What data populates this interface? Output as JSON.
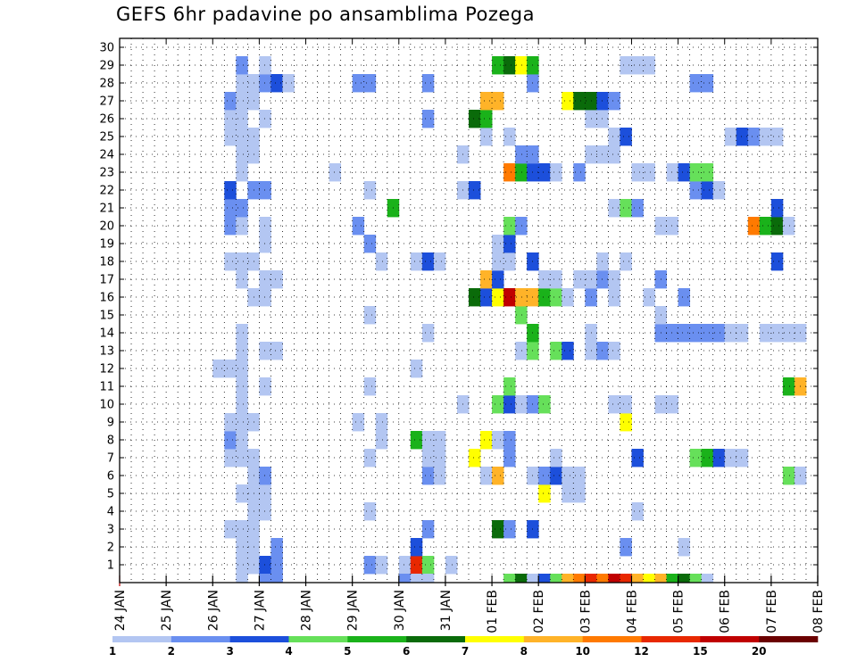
{
  "chart_data": {
    "type": "heatmap",
    "title": "GEFS 6hr padavine po ansamblima Pozega",
    "x_tick_labels": [
      "24 JAN",
      "25 JAN",
      "26 JAN",
      "27 JAN",
      "28 JAN",
      "29 JAN",
      "30 JAN",
      "31 JAN",
      "01 FEB",
      "02 FEB",
      "03 FEB",
      "04 FEB",
      "05 FEB",
      "06 FEB",
      "07 FEB",
      "08 FEB"
    ],
    "y_tick_labels": [
      "1",
      "2",
      "3",
      "4",
      "5",
      "6",
      "7",
      "8",
      "9",
      "10",
      "11",
      "12",
      "13",
      "14",
      "15",
      "16",
      "17",
      "18",
      "19",
      "20",
      "21",
      "22",
      "23",
      "24",
      "25",
      "26",
      "27",
      "28",
      "29",
      "30"
    ],
    "time_step_hours": 6,
    "members": 30,
    "grid": true,
    "legend": {
      "placement": "bottom",
      "levels": [
        "1",
        "2",
        "3",
        "4",
        "5",
        "6",
        "7",
        "8",
        "10",
        "12",
        "15",
        "20"
      ],
      "colors": [
        "#b3c6f2",
        "#6a8ff0",
        "#1c4fdb",
        "#66e05a",
        "#1ab21a",
        "#0a6b0a",
        "#ffff00",
        "#ffb328",
        "#ff7a00",
        "#e82800",
        "#c00000",
        "#6b0000"
      ]
    },
    "cells": [
      [
        1,
        10,
        1
      ],
      [
        1,
        11,
        1
      ],
      [
        1,
        12,
        3
      ],
      [
        1,
        13,
        2
      ],
      [
        1,
        21,
        2
      ],
      [
        1,
        22,
        1
      ],
      [
        1,
        24,
        1
      ],
      [
        1,
        25,
        10
      ],
      [
        1,
        26,
        4
      ],
      [
        1,
        28,
        1
      ],
      [
        2,
        10,
        1
      ],
      [
        2,
        11,
        1
      ],
      [
        2,
        13,
        2
      ],
      [
        2,
        25,
        3
      ],
      [
        2,
        43,
        2
      ],
      [
        2,
        48,
        1
      ],
      [
        3,
        9,
        1
      ],
      [
        3,
        10,
        1
      ],
      [
        3,
        11,
        1
      ],
      [
        3,
        26,
        2
      ],
      [
        3,
        32,
        6
      ],
      [
        3,
        33,
        2
      ],
      [
        3,
        35,
        3
      ],
      [
        4,
        11,
        1
      ],
      [
        4,
        12,
        1
      ],
      [
        4,
        21,
        1
      ],
      [
        4,
        44,
        1
      ],
      [
        5,
        10,
        1
      ],
      [
        5,
        11,
        1
      ],
      [
        5,
        12,
        1
      ],
      [
        5,
        36,
        7
      ],
      [
        5,
        38,
        1
      ],
      [
        5,
        39,
        1
      ],
      [
        6,
        11,
        1
      ],
      [
        6,
        12,
        2
      ],
      [
        6,
        26,
        2
      ],
      [
        6,
        27,
        1
      ],
      [
        6,
        31,
        1
      ],
      [
        6,
        32,
        8
      ],
      [
        6,
        35,
        1
      ],
      [
        6,
        36,
        2
      ],
      [
        6,
        37,
        3
      ],
      [
        6,
        38,
        1
      ],
      [
        6,
        39,
        1
      ],
      [
        6,
        57,
        4
      ],
      [
        6,
        58,
        1
      ],
      [
        7,
        9,
        1
      ],
      [
        7,
        10,
        1
      ],
      [
        7,
        11,
        1
      ],
      [
        7,
        21,
        1
      ],
      [
        7,
        26,
        1
      ],
      [
        7,
        27,
        1
      ],
      [
        7,
        30,
        7
      ],
      [
        7,
        33,
        2
      ],
      [
        7,
        37,
        1
      ],
      [
        7,
        44,
        3
      ],
      [
        7,
        49,
        4
      ],
      [
        7,
        50,
        5
      ],
      [
        7,
        51,
        3
      ],
      [
        7,
        52,
        1
      ],
      [
        7,
        53,
        1
      ],
      [
        8,
        9,
        2
      ],
      [
        8,
        10,
        1
      ],
      [
        8,
        22,
        1
      ],
      [
        8,
        25,
        5
      ],
      [
        8,
        26,
        1
      ],
      [
        8,
        27,
        1
      ],
      [
        8,
        31,
        7
      ],
      [
        8,
        32,
        1
      ],
      [
        8,
        33,
        2
      ],
      [
        9,
        9,
        1
      ],
      [
        9,
        10,
        1
      ],
      [
        9,
        11,
        1
      ],
      [
        9,
        20,
        1
      ],
      [
        9,
        22,
        1
      ],
      [
        9,
        43,
        7
      ],
      [
        10,
        10,
        1
      ],
      [
        10,
        29,
        1
      ],
      [
        10,
        32,
        4
      ],
      [
        10,
        33,
        3
      ],
      [
        10,
        34,
        1
      ],
      [
        10,
        35,
        2
      ],
      [
        10,
        36,
        4
      ],
      [
        10,
        42,
        1
      ],
      [
        10,
        43,
        1
      ],
      [
        10,
        46,
        1
      ],
      [
        10,
        47,
        1
      ],
      [
        11,
        10,
        1
      ],
      [
        11,
        12,
        1
      ],
      [
        11,
        21,
        1
      ],
      [
        11,
        33,
        4
      ],
      [
        11,
        57,
        5
      ],
      [
        11,
        58,
        8
      ],
      [
        12,
        8,
        1
      ],
      [
        12,
        9,
        1
      ],
      [
        12,
        10,
        1
      ],
      [
        12,
        25,
        1
      ],
      [
        13,
        10,
        1
      ],
      [
        13,
        12,
        1
      ],
      [
        13,
        13,
        1
      ],
      [
        13,
        34,
        1
      ],
      [
        13,
        35,
        4
      ],
      [
        13,
        37,
        4
      ],
      [
        13,
        38,
        3
      ],
      [
        13,
        40,
        1
      ],
      [
        13,
        41,
        2
      ],
      [
        13,
        42,
        1
      ],
      [
        14,
        10,
        1
      ],
      [
        14,
        26,
        1
      ],
      [
        14,
        35,
        5
      ],
      [
        14,
        40,
        1
      ],
      [
        14,
        46,
        2
      ],
      [
        14,
        47,
        2
      ],
      [
        14,
        48,
        2
      ],
      [
        14,
        49,
        2
      ],
      [
        14,
        50,
        2
      ],
      [
        14,
        51,
        2
      ],
      [
        14,
        52,
        1
      ],
      [
        14,
        53,
        1
      ],
      [
        14,
        55,
        1
      ],
      [
        14,
        56,
        1
      ],
      [
        14,
        57,
        1
      ],
      [
        14,
        58,
        1
      ],
      [
        15,
        21,
        1
      ],
      [
        15,
        34,
        4
      ],
      [
        15,
        46,
        1
      ],
      [
        16,
        11,
        1
      ],
      [
        16,
        12,
        1
      ],
      [
        16,
        30,
        6
      ],
      [
        16,
        31,
        3
      ],
      [
        16,
        32,
        7
      ],
      [
        16,
        33,
        11
      ],
      [
        16,
        34,
        8
      ],
      [
        16,
        35,
        8
      ],
      [
        16,
        36,
        5
      ],
      [
        16,
        37,
        4
      ],
      [
        16,
        38,
        1
      ],
      [
        16,
        40,
        2
      ],
      [
        16,
        42,
        1
      ],
      [
        16,
        45,
        1
      ],
      [
        16,
        48,
        2
      ],
      [
        17,
        10,
        1
      ],
      [
        17,
        12,
        1
      ],
      [
        17,
        13,
        1
      ],
      [
        17,
        31,
        8
      ],
      [
        17,
        32,
        3
      ],
      [
        17,
        36,
        1
      ],
      [
        17,
        37,
        1
      ],
      [
        17,
        39,
        1
      ],
      [
        17,
        40,
        1
      ],
      [
        17,
        41,
        2
      ],
      [
        17,
        42,
        1
      ],
      [
        17,
        46,
        2
      ],
      [
        18,
        9,
        1
      ],
      [
        18,
        10,
        1
      ],
      [
        18,
        11,
        1
      ],
      [
        18,
        22,
        1
      ],
      [
        18,
        25,
        1
      ],
      [
        18,
        26,
        3
      ],
      [
        18,
        27,
        1
      ],
      [
        18,
        32,
        1
      ],
      [
        18,
        33,
        1
      ],
      [
        18,
        35,
        3
      ],
      [
        18,
        41,
        1
      ],
      [
        18,
        43,
        1
      ],
      [
        18,
        56,
        3
      ],
      [
        19,
        12,
        1
      ],
      [
        19,
        21,
        2
      ],
      [
        19,
        32,
        1
      ],
      [
        19,
        33,
        3
      ],
      [
        20,
        9,
        2
      ],
      [
        20,
        10,
        1
      ],
      [
        20,
        12,
        1
      ],
      [
        20,
        20,
        2
      ],
      [
        20,
        33,
        4
      ],
      [
        20,
        34,
        2
      ],
      [
        20,
        46,
        1
      ],
      [
        20,
        47,
        1
      ],
      [
        20,
        54,
        9
      ],
      [
        20,
        55,
        5
      ],
      [
        20,
        56,
        6
      ],
      [
        20,
        57,
        1
      ],
      [
        21,
        9,
        2
      ],
      [
        21,
        10,
        2
      ],
      [
        21,
        23,
        5
      ],
      [
        21,
        42,
        1
      ],
      [
        21,
        43,
        4
      ],
      [
        21,
        44,
        2
      ],
      [
        21,
        56,
        3
      ],
      [
        22,
        9,
        3
      ],
      [
        22,
        11,
        2
      ],
      [
        22,
        12,
        2
      ],
      [
        22,
        21,
        1
      ],
      [
        22,
        29,
        1
      ],
      [
        22,
        30,
        3
      ],
      [
        22,
        49,
        2
      ],
      [
        22,
        50,
        3
      ],
      [
        22,
        51,
        1
      ],
      [
        23,
        10,
        1
      ],
      [
        23,
        18,
        1
      ],
      [
        23,
        33,
        9
      ],
      [
        23,
        34,
        5
      ],
      [
        23,
        35,
        3
      ],
      [
        23,
        36,
        3
      ],
      [
        23,
        37,
        1
      ],
      [
        23,
        39,
        2
      ],
      [
        23,
        44,
        1
      ],
      [
        23,
        45,
        1
      ],
      [
        23,
        47,
        1
      ],
      [
        23,
        48,
        3
      ],
      [
        23,
        49,
        4
      ],
      [
        23,
        50,
        4
      ],
      [
        24,
        10,
        1
      ],
      [
        24,
        11,
        1
      ],
      [
        24,
        29,
        1
      ],
      [
        24,
        34,
        2
      ],
      [
        24,
        35,
        2
      ],
      [
        24,
        40,
        1
      ],
      [
        24,
        41,
        1
      ],
      [
        24,
        42,
        1
      ],
      [
        25,
        9,
        1
      ],
      [
        25,
        10,
        1
      ],
      [
        25,
        11,
        1
      ],
      [
        25,
        31,
        1
      ],
      [
        25,
        33,
        1
      ],
      [
        25,
        42,
        1
      ],
      [
        25,
        43,
        3
      ],
      [
        25,
        52,
        1
      ],
      [
        25,
        53,
        3
      ],
      [
        25,
        54,
        2
      ],
      [
        25,
        55,
        1
      ],
      [
        25,
        56,
        1
      ],
      [
        26,
        9,
        1
      ],
      [
        26,
        10,
        1
      ],
      [
        26,
        12,
        1
      ],
      [
        26,
        26,
        2
      ],
      [
        26,
        30,
        6
      ],
      [
        26,
        31,
        5
      ],
      [
        26,
        40,
        1
      ],
      [
        26,
        41,
        1
      ],
      [
        27,
        9,
        2
      ],
      [
        27,
        10,
        1
      ],
      [
        27,
        11,
        1
      ],
      [
        27,
        31,
        8
      ],
      [
        27,
        32,
        8
      ],
      [
        27,
        38,
        7
      ],
      [
        27,
        39,
        6
      ],
      [
        27,
        40,
        6
      ],
      [
        27,
        41,
        3
      ],
      [
        27,
        42,
        2
      ],
      [
        28,
        10,
        1
      ],
      [
        28,
        11,
        1
      ],
      [
        28,
        12,
        2
      ],
      [
        28,
        13,
        3
      ],
      [
        28,
        14,
        1
      ],
      [
        28,
        20,
        2
      ],
      [
        28,
        21,
        2
      ],
      [
        28,
        26,
        2
      ],
      [
        28,
        35,
        2
      ],
      [
        28,
        49,
        2
      ],
      [
        28,
        50,
        2
      ],
      [
        29,
        10,
        2
      ],
      [
        29,
        12,
        1
      ],
      [
        29,
        32,
        5
      ],
      [
        29,
        33,
        6
      ],
      [
        29,
        34,
        7
      ],
      [
        29,
        35,
        5
      ],
      [
        29,
        43,
        1
      ],
      [
        29,
        44,
        1
      ],
      [
        29,
        45,
        1
      ]
    ],
    "bottom_strip": [
      [
        10,
        1
      ],
      [
        12,
        2
      ],
      [
        13,
        2
      ],
      [
        24,
        2
      ],
      [
        25,
        1
      ],
      [
        26,
        1
      ],
      [
        33,
        4
      ],
      [
        34,
        6
      ],
      [
        35,
        1
      ],
      [
        36,
        3
      ],
      [
        37,
        4
      ],
      [
        38,
        8
      ],
      [
        39,
        9
      ],
      [
        40,
        10
      ],
      [
        41,
        9
      ],
      [
        42,
        11
      ],
      [
        43,
        10
      ],
      [
        44,
        8
      ],
      [
        45,
        7
      ],
      [
        46,
        8
      ],
      [
        47,
        5
      ],
      [
        48,
        6
      ],
      [
        49,
        4
      ],
      [
        50,
        1
      ]
    ]
  }
}
